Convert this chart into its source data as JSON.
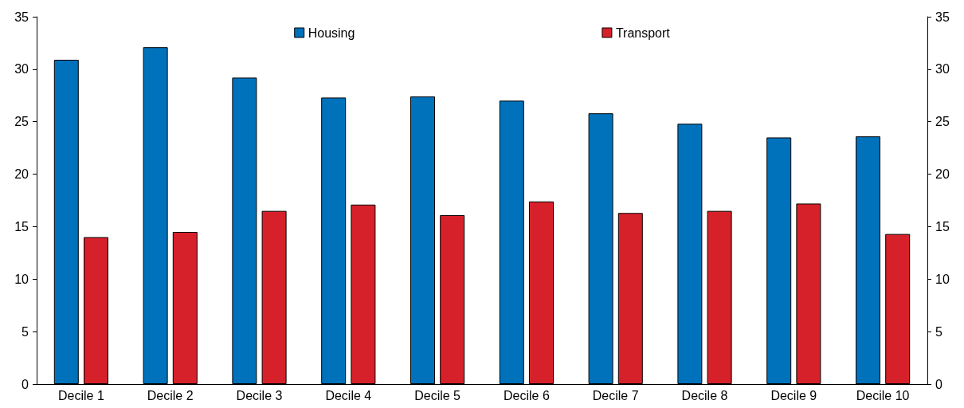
{
  "chart_data": {
    "type": "bar",
    "categories": [
      "Decile 1",
      "Decile 2",
      "Decile 3",
      "Decile 4",
      "Decile 5",
      "Decile 6",
      "Decile 7",
      "Decile 8",
      "Decile 9",
      "Decile 10"
    ],
    "series": [
      {
        "name": "Housing",
        "color": "#0072bc",
        "values": [
          30.9,
          32.1,
          29.2,
          27.3,
          27.4,
          27.0,
          25.8,
          24.8,
          23.5,
          23.6
        ]
      },
      {
        "name": "Transport",
        "color": "#d7212a",
        "values": [
          14.0,
          14.5,
          16.5,
          17.1,
          16.1,
          17.4,
          16.3,
          16.5,
          17.2,
          14.3
        ]
      }
    ],
    "ylim": [
      0,
      35
    ],
    "yticks": [
      0,
      5,
      10,
      15,
      20,
      25,
      30,
      35
    ],
    "y2lim": [
      0,
      35
    ],
    "y2ticks": [
      0,
      5,
      10,
      15,
      20,
      25,
      30,
      35
    ],
    "grid": false,
    "legend": "top"
  }
}
